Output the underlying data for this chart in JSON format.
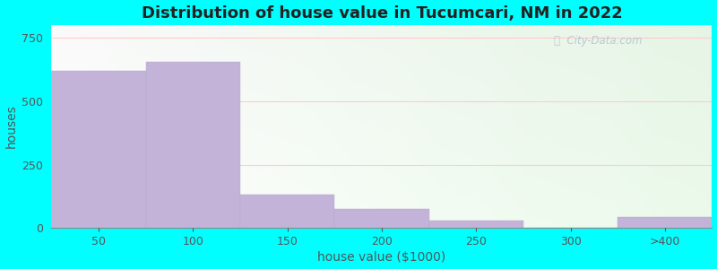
{
  "title": "Distribution of house value in Tucumcari, NM in 2022",
  "xlabel": "house value ($1000)",
  "ylabel": "houses",
  "categories": [
    "50",
    "100",
    "150",
    "200",
    "250",
    "300",
    ">400"
  ],
  "values": [
    620,
    655,
    130,
    75,
    30,
    0,
    45
  ],
  "bar_color": "#c4b3d8",
  "bar_edge_color": "#b8a9d0",
  "ylim": [
    0,
    800
  ],
  "yticks": [
    0,
    250,
    500,
    750
  ],
  "title_fontsize": 13,
  "axis_label_fontsize": 10,
  "watermark": "City-Data.com",
  "outer_bg": "#00ffff",
  "grid_color": "#ffcccc",
  "grid_linewidth": 0.8
}
